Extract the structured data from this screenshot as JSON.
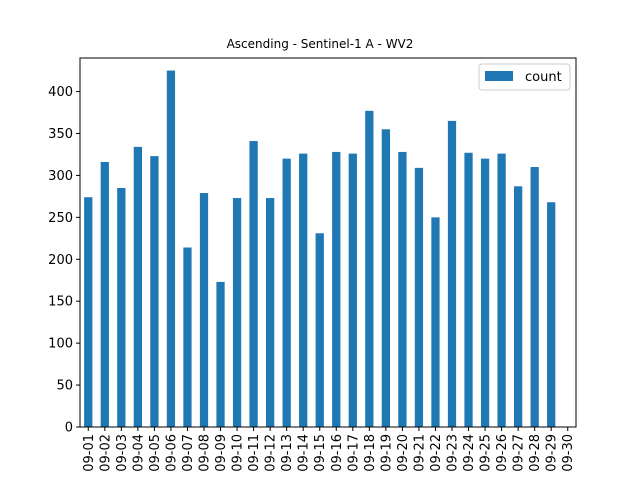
{
  "chart_data": {
    "type": "bar",
    "title": "Ascending - Sentinel-1 A - WV2",
    "xlabel": "",
    "ylabel": "",
    "categories": [
      "09-01",
      "09-02",
      "09-03",
      "09-04",
      "09-05",
      "09-06",
      "09-07",
      "09-08",
      "09-09",
      "09-10",
      "09-11",
      "09-12",
      "09-13",
      "09-14",
      "09-15",
      "09-16",
      "09-17",
      "09-18",
      "09-19",
      "09-20",
      "09-21",
      "09-22",
      "09-23",
      "09-24",
      "09-25",
      "09-26",
      "09-27",
      "09-28",
      "09-29",
      "09-30"
    ],
    "series": [
      {
        "name": "count",
        "color": "#1f77b4",
        "values": [
          274,
          316,
          285,
          334,
          323,
          425,
          214,
          279,
          173,
          273,
          341,
          273,
          320,
          326,
          231,
          328,
          326,
          377,
          355,
          328,
          309,
          250,
          365,
          327,
          320,
          326,
          287,
          310,
          268,
          0
        ]
      }
    ],
    "ylim": [
      0,
      440
    ],
    "yticks": [
      0,
      50,
      100,
      150,
      200,
      250,
      300,
      350,
      400
    ],
    "grid": false,
    "legend_position": "top-right"
  }
}
